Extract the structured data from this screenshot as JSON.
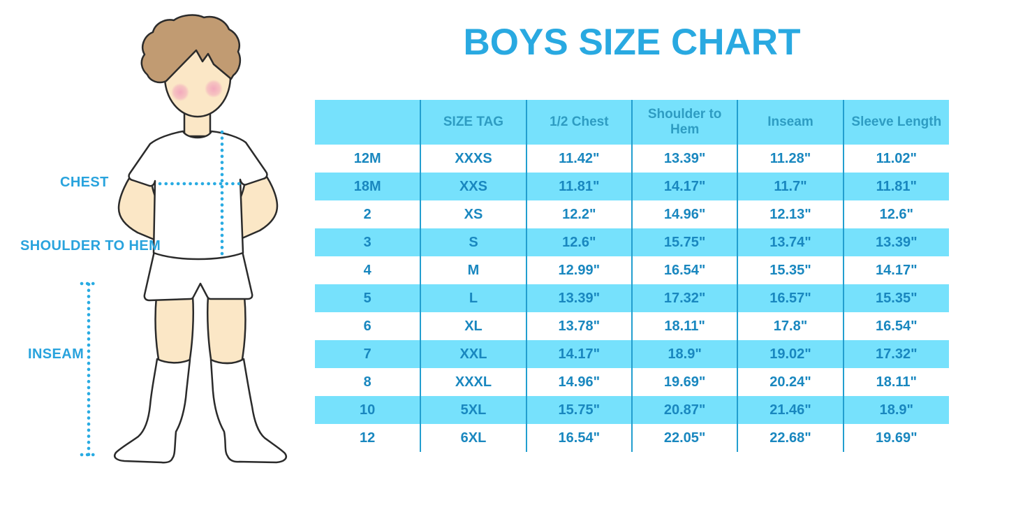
{
  "title": "BOYS SIZE CHART",
  "figure": {
    "label_chest": "CHEST",
    "label_shoulder_to_hem": "SHOULDER TO HEM",
    "label_inseam": "INSEAM"
  },
  "chart_data": {
    "type": "table",
    "title": "BOYS SIZE CHART",
    "columns": [
      "",
      "SIZE TAG",
      "1/2 Chest",
      "Shoulder to Hem",
      "Inseam",
      "Sleeve Length"
    ],
    "rows": [
      [
        "12M",
        "XXXS",
        "11.42\"",
        "13.39\"",
        "11.28\"",
        "11.02\""
      ],
      [
        "18M",
        "XXS",
        "11.81\"",
        "14.17\"",
        "11.7\"",
        "11.81\""
      ],
      [
        "2",
        "XS",
        "12.2\"",
        "14.96\"",
        "12.13\"",
        "12.6\""
      ],
      [
        "3",
        "S",
        "12.6\"",
        "15.75\"",
        "13.74\"",
        "13.39\""
      ],
      [
        "4",
        "M",
        "12.99\"",
        "16.54\"",
        "15.35\"",
        "14.17\""
      ],
      [
        "5",
        "L",
        "13.39\"",
        "17.32\"",
        "16.57\"",
        "15.35\""
      ],
      [
        "6",
        "XL",
        "13.78\"",
        "18.11\"",
        "17.8\"",
        "16.54\""
      ],
      [
        "7",
        "XXL",
        "14.17\"",
        "18.9\"",
        "19.02\"",
        "17.32\""
      ],
      [
        "8",
        "XXXL",
        "14.96\"",
        "19.69\"",
        "20.24\"",
        "18.11\""
      ],
      [
        "10",
        "5XL",
        "15.75\"",
        "20.87\"",
        "21.46\"",
        "18.9\""
      ],
      [
        "12",
        "6XL",
        "16.54\"",
        "22.05\"",
        "22.68\"",
        "19.69\""
      ]
    ],
    "layout": {
      "header_background": "#76E1FC",
      "stripe_background": "#76E1FC",
      "alternating_rows": true,
      "grid": "vertical-lines-only"
    }
  },
  "colors": {
    "accent_blue": "#29A9E1",
    "row_cyan": "#76E1FC",
    "header_text": "#2E9CC2",
    "body_text": "#1987BF",
    "grid_line": "#229ECF",
    "dotted_line": "#29ABE2",
    "hair": "#C19B72",
    "skin": "#FBE7C6",
    "outline": "#2B2B2B"
  }
}
